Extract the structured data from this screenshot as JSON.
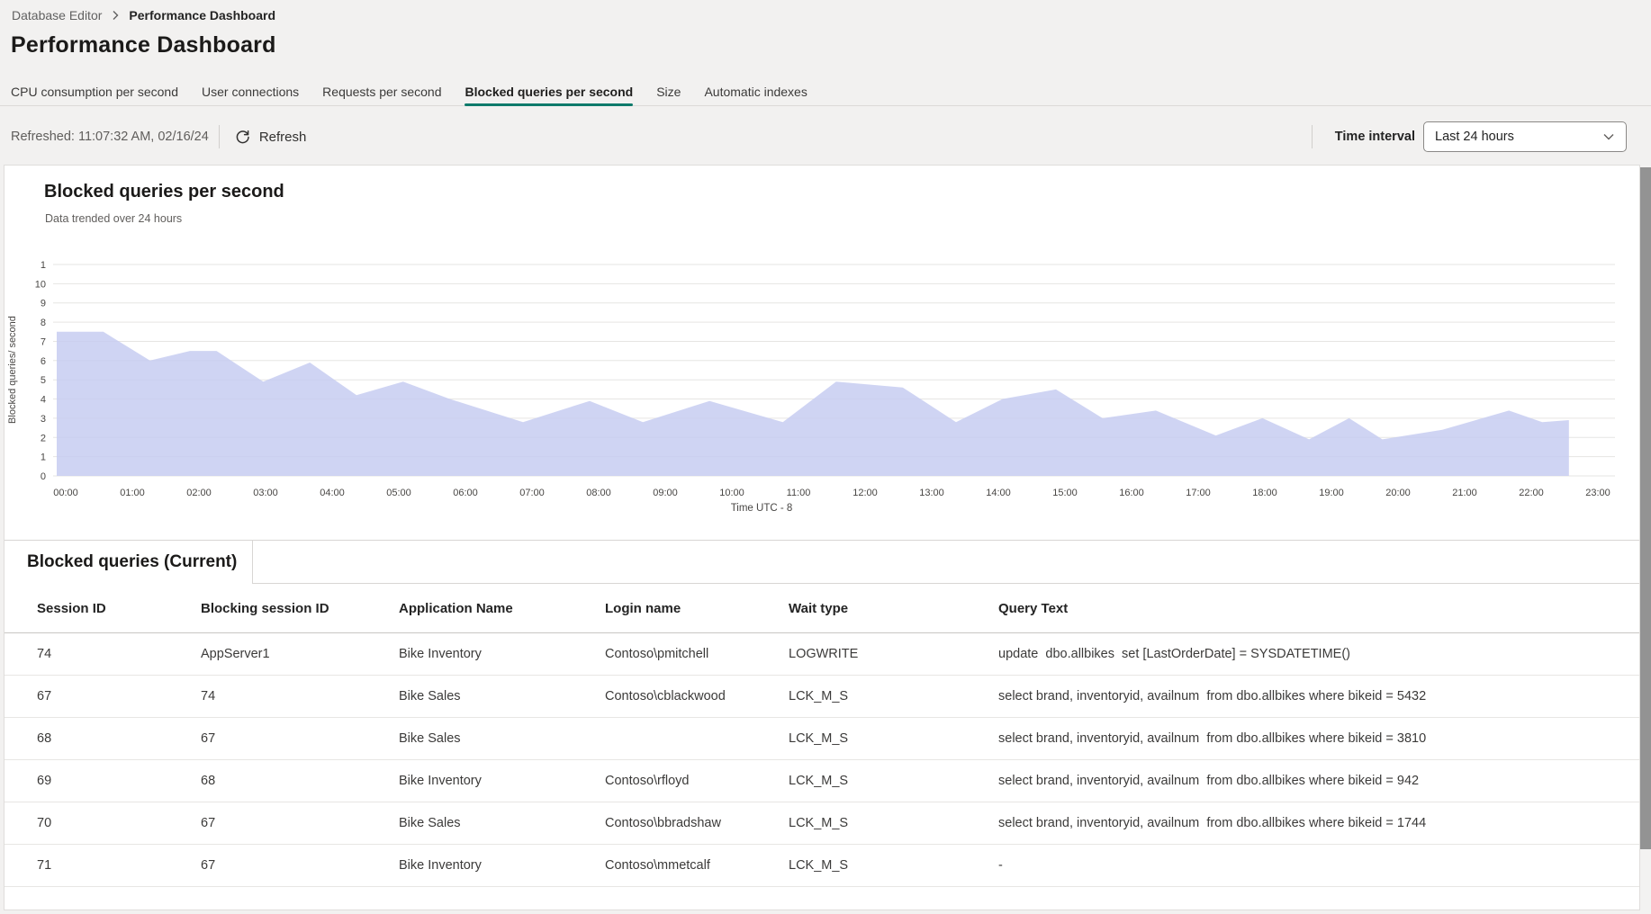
{
  "breadcrumb": {
    "items": [
      "Database Editor",
      "Performance Dashboard"
    ]
  },
  "page_title": "Performance Dashboard",
  "tabs": [
    {
      "label": "CPU consumption per second",
      "active": false
    },
    {
      "label": "User connections",
      "active": false
    },
    {
      "label": "Requests per second",
      "active": false
    },
    {
      "label": "Blocked queries per second",
      "active": true
    },
    {
      "label": "Size",
      "active": false
    },
    {
      "label": "Automatic indexes",
      "active": false
    }
  ],
  "toolbar": {
    "refreshed_label": "Refreshed: 11:07:32 AM, 02/16/24",
    "refresh_label": "Refresh",
    "time_interval_label": "Time interval",
    "time_interval_value": "Last 24 hours"
  },
  "colors": {
    "accent_teal": "#0e7a6b",
    "area_fill": "#c7cdf1",
    "gridline": "#e6e5e3"
  },
  "chart_data": {
    "type": "area",
    "title": "Blocked queries per second",
    "subtitle": "Data trended over 24 hours",
    "ylabel": "Blocked queries/ second",
    "xlabel": "Time UTC - 8",
    "ylim": [
      0,
      11
    ],
    "grid": true,
    "legend": "none",
    "y_ticks_top_to_bottom": [
      "1",
      "10",
      "9",
      "8",
      "7",
      "6",
      "5",
      "4",
      "3",
      "2",
      "1",
      "0"
    ],
    "x_ticks": [
      "00:00",
      "01:00",
      "02:00",
      "03:00",
      "04:00",
      "05:00",
      "06:00",
      "07:00",
      "08:00",
      "09:00",
      "10:00",
      "11:00",
      "12:00",
      "13:00",
      "14:00",
      "15:00",
      "16:00",
      "17:00",
      "18:00",
      "19:00",
      "20:00",
      "21:00",
      "22:00",
      "23:00"
    ],
    "series": [
      {
        "name": "Blocked queries per second",
        "points_hour_value": [
          [
            0,
            7.5
          ],
          [
            0.7,
            7.5
          ],
          [
            1.4,
            6.0
          ],
          [
            2.0,
            6.5
          ],
          [
            2.4,
            6.5
          ],
          [
            3.1,
            4.9
          ],
          [
            3.8,
            5.9
          ],
          [
            4.5,
            4.2
          ],
          [
            5.2,
            4.9
          ],
          [
            5.9,
            4.0
          ],
          [
            7.0,
            2.8
          ],
          [
            8.0,
            3.9
          ],
          [
            8.8,
            2.8
          ],
          [
            9.8,
            3.9
          ],
          [
            10.9,
            2.8
          ],
          [
            11.7,
            4.9
          ],
          [
            12.7,
            4.6
          ],
          [
            13.5,
            2.8
          ],
          [
            14.2,
            4.0
          ],
          [
            15.0,
            4.5
          ],
          [
            15.7,
            3.0
          ],
          [
            16.5,
            3.4
          ],
          [
            17.4,
            2.1
          ],
          [
            18.1,
            3.0
          ],
          [
            18.8,
            1.9
          ],
          [
            19.4,
            3.0
          ],
          [
            19.9,
            1.9
          ],
          [
            20.8,
            2.4
          ],
          [
            21.8,
            3.4
          ],
          [
            22.3,
            2.8
          ],
          [
            22.7,
            2.9
          ]
        ]
      }
    ]
  },
  "table_section": {
    "title": "Blocked queries (Current)",
    "columns": [
      "Session ID",
      "Blocking session ID",
      "Application Name",
      "Login name",
      "Wait type",
      "Query Text"
    ],
    "rows": [
      [
        "74",
        "AppServer1",
        "Bike Inventory",
        "Contoso\\pmitchell",
        "LOGWRITE",
        "update  dbo.allbikes  set [LastOrderDate] = SYSDATETIME()"
      ],
      [
        "67",
        "74",
        "Bike Sales",
        "Contoso\\cblackwood",
        "LCK_M_S",
        "select brand, inventoryid, availnum  from dbo.allbikes where bikeid = 5432"
      ],
      [
        "68",
        "67",
        "Bike Sales",
        "",
        "LCK_M_S",
        "select brand, inventoryid, availnum  from dbo.allbikes where bikeid = 3810"
      ],
      [
        "69",
        "68",
        "Bike Inventory",
        "Contoso\\rfloyd",
        "LCK_M_S",
        "select brand, inventoryid, availnum  from dbo.allbikes where bikeid = 942"
      ],
      [
        "70",
        "67",
        "Bike Sales",
        "Contoso\\bbradshaw",
        "LCK_M_S",
        "select brand, inventoryid, availnum  from dbo.allbikes where bikeid = 1744"
      ],
      [
        "71",
        "67",
        "Bike Inventory",
        "Contoso\\mmetcalf",
        "LCK_M_S",
        "-"
      ]
    ]
  }
}
